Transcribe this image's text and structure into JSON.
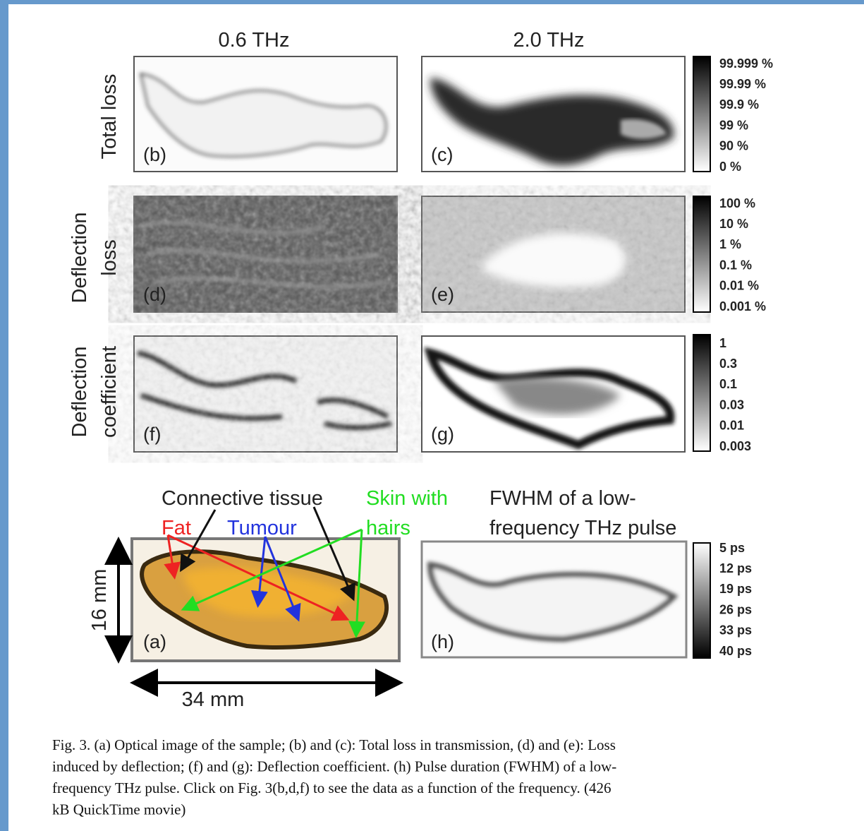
{
  "figure": {
    "column_headers": [
      "0.6 THz",
      "2.0 THz"
    ],
    "row_labels": [
      [
        "Total loss"
      ],
      [
        "Deflection",
        "loss"
      ],
      [
        "Deflection",
        "coefficient"
      ]
    ],
    "panel_labels": [
      "(a)",
      "(b)",
      "(c)",
      "(d)",
      "(e)",
      "(f)",
      "(g)",
      "(h)"
    ],
    "colorbars": [
      [
        "99.999 %",
        "99.99 %",
        "99.9 %",
        "99 %",
        "90 %",
        "0 %"
      ],
      [
        "100 %",
        "10 %",
        "1 %",
        "0.1 %",
        "0.01 %",
        "0.001 %"
      ],
      [
        "1",
        "0.3",
        "0.1",
        "0.03",
        "0.01",
        "0.003"
      ],
      [
        "5 ps",
        "12 ps",
        "19 ps",
        "26 ps",
        "33 ps",
        "40 ps"
      ]
    ],
    "annotations": {
      "connective_tissue": "Connective tissue",
      "skin_with_hairs": [
        "Skin with",
        "hairs"
      ],
      "fat": "Fat",
      "tumour": "Tumour",
      "fwhm_title": [
        "FWHM of a low-",
        "frequency THz pulse"
      ]
    },
    "scale_labels": {
      "height": "16 mm",
      "width": "34 mm"
    },
    "caption": [
      "Fig. 3. (a) Optical image of the sample; (b) and (c): Total loss in transmission, (d) and (e): Loss",
      "induced by deflection; (f) and (g): Deflection coefficient. (h) Pulse duration (FWHM) of a low-",
      "frequency THz pulse. Click on Fig. 3(b,d,f)  to see the data as a function of the frequency. (426",
      "kB QuickTime movie)"
    ]
  }
}
